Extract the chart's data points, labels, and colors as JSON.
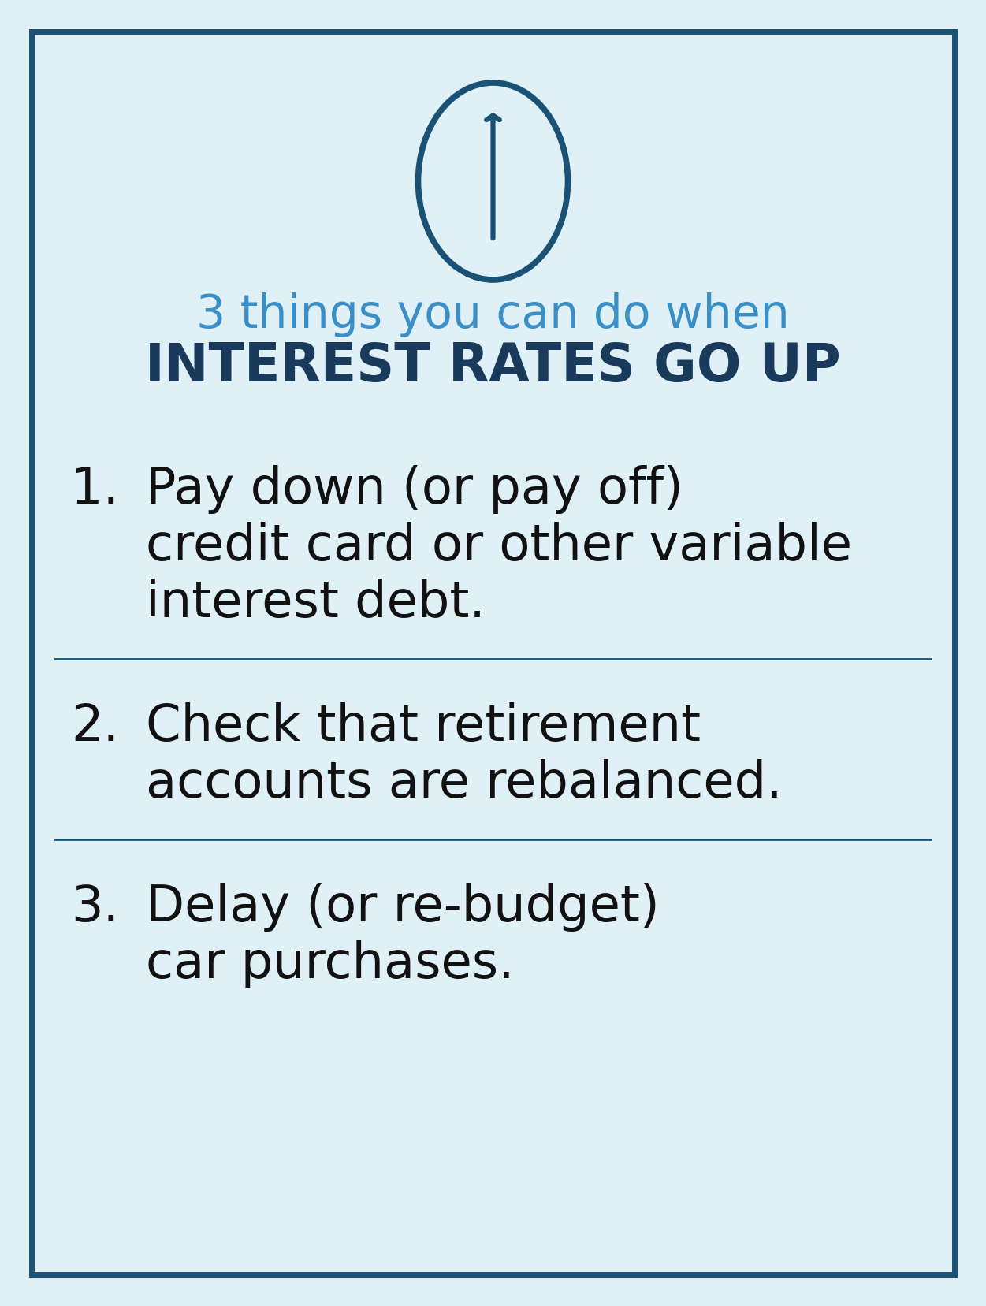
{
  "bg_outer": "#ddeef5",
  "bg_inner": "#dff0f7",
  "border_color": "#1a5276",
  "border_linewidth": 5.0,
  "arrow_circle_color": "#1a5276",
  "title_line1": "3 things you can do when",
  "title_line2": "INTEREST RATES GO UP",
  "title_line1_color": "#3a8fc7",
  "title_line2_color": "#1a3a5c",
  "item1_num": "1.",
  "item1_line1": "Pay down (or pay off)",
  "item1_line2": "credit card or other variable",
  "item1_line3": "interest debt.",
  "item2_num": "2.",
  "item2_line1": "Check that retirement",
  "item2_line2": "accounts are rebalanced.",
  "item3_num": "3.",
  "item3_line1": "Delay (or re-budget)",
  "item3_line2": "car purchases.",
  "item_color": "#111111",
  "divider_color": "#1a5276",
  "figsize": [
    12.51,
    16.57
  ],
  "dpi": 100
}
